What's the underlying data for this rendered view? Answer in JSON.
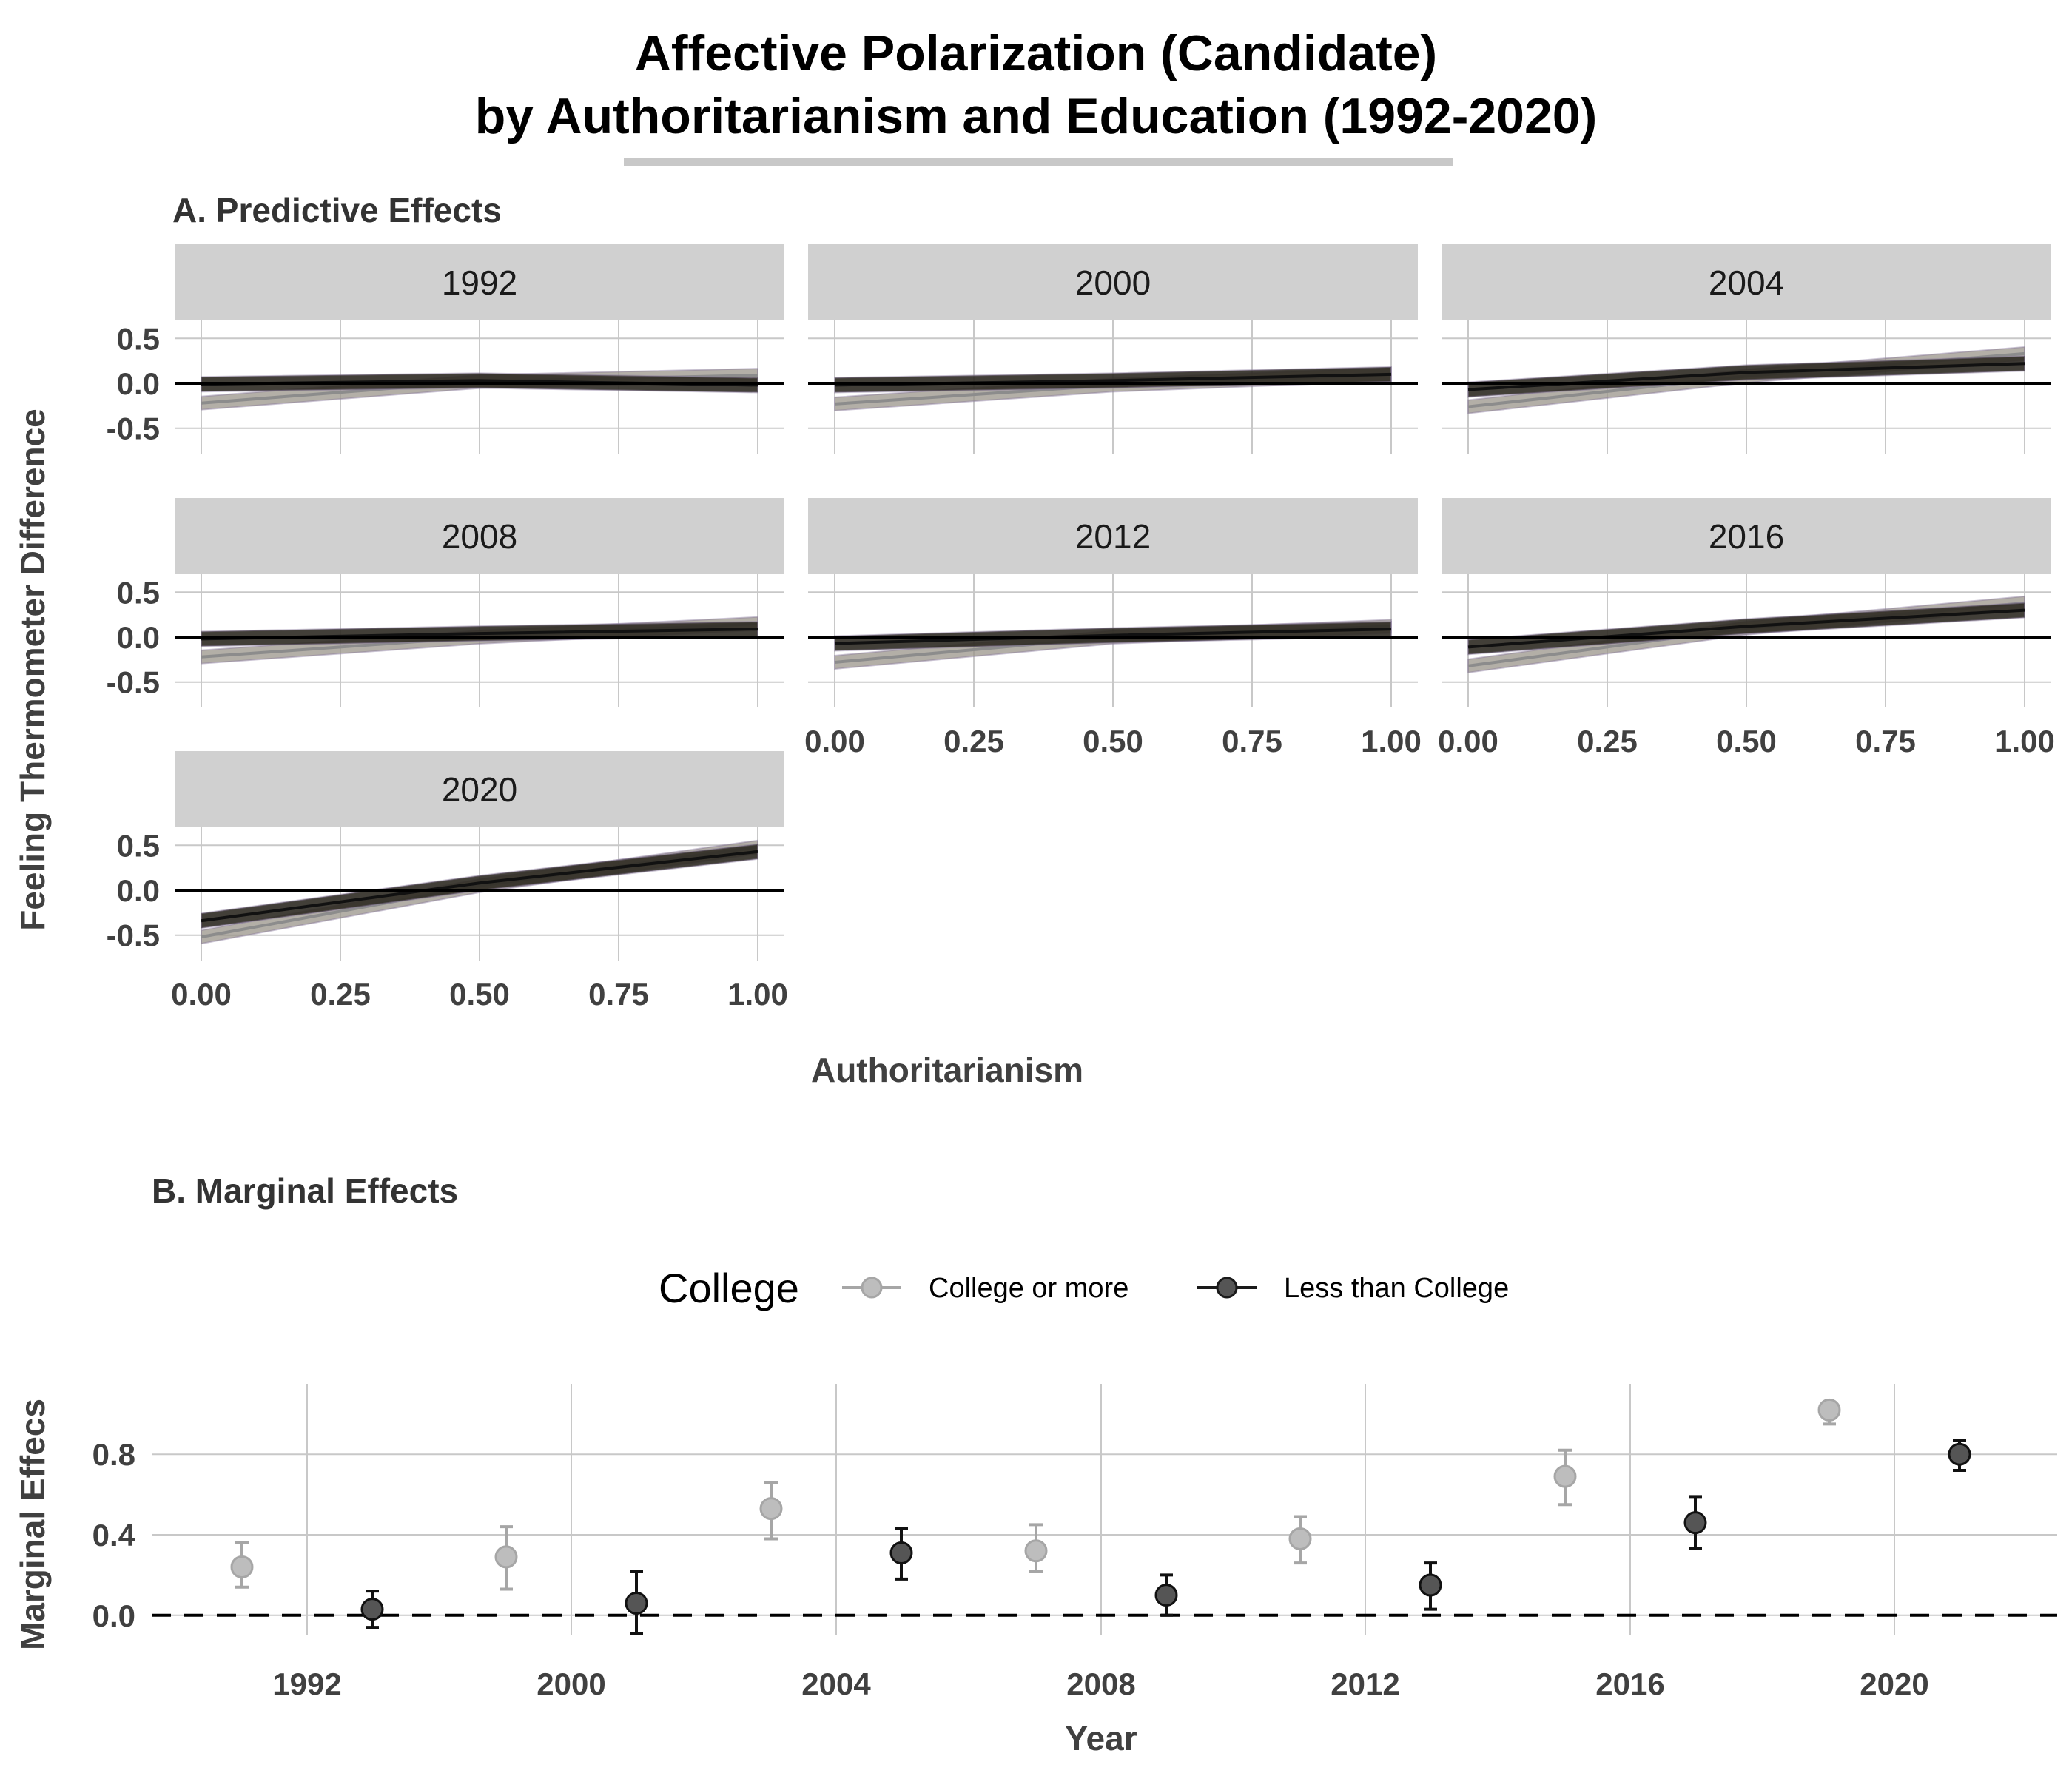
{
  "title_line1": "Affective Polarization (Candidate)",
  "title_line2": "by Authoritarianism and Education (1992-2020)",
  "colors": {
    "college": "#a6a6a6",
    "less_than_college": "#1a1a1a",
    "ribbon_tint": "#8a7a9e",
    "strip_bg": "#d0d0d0",
    "grid": "#c8c8c8"
  },
  "chart_data": [
    {
      "type": "line",
      "subtitle": "A. Predictive Effects",
      "xlabel": "Authoritarianism",
      "ylabel": "Feeling Thermometer Difference",
      "xlim": [
        0,
        1
      ],
      "ylim": [
        -0.7,
        0.7
      ],
      "x_ticks": [
        "0.00",
        "0.25",
        "0.50",
        "0.75",
        "1.00"
      ],
      "y_ticks": [
        "0.5",
        "0.0",
        "-0.5"
      ],
      "reference_line": 0,
      "grid": true,
      "facets": [
        {
          "label": "1992",
          "series": [
            {
              "group": "College or more",
              "x": [
                0,
                0.5,
                1
              ],
              "y": [
                -0.22,
                0.02,
                0.09
              ]
            },
            {
              "group": "Less than College",
              "x": [
                0,
                0.5,
                1
              ],
              "y": [
                -0.01,
                0.03,
                -0.02
              ]
            }
          ]
        },
        {
          "label": "2000",
          "series": [
            {
              "group": "College or more",
              "x": [
                0,
                0.5,
                1
              ],
              "y": [
                -0.23,
                -0.02,
                0.1
              ]
            },
            {
              "group": "Less than College",
              "x": [
                0,
                0.5,
                1
              ],
              "y": [
                -0.02,
                0.03,
                0.1
              ]
            }
          ]
        },
        {
          "label": "2004",
          "series": [
            {
              "group": "College or more",
              "x": [
                0,
                0.5,
                1
              ],
              "y": [
                -0.26,
                0.08,
                0.33
              ]
            },
            {
              "group": "Less than College",
              "x": [
                0,
                0.5,
                1
              ],
              "y": [
                -0.07,
                0.12,
                0.22
              ]
            }
          ]
        },
        {
          "label": "2008",
          "series": [
            {
              "group": "College or more",
              "x": [
                0,
                0.5,
                1
              ],
              "y": [
                -0.22,
                0.0,
                0.15
              ]
            },
            {
              "group": "Less than College",
              "x": [
                0,
                0.5,
                1
              ],
              "y": [
                -0.02,
                0.04,
                0.09
              ]
            }
          ]
        },
        {
          "label": "2012",
          "series": [
            {
              "group": "College or more",
              "x": [
                0,
                0.5,
                1
              ],
              "y": [
                -0.28,
                0.0,
                0.12
              ]
            },
            {
              "group": "Less than College",
              "x": [
                0,
                0.5,
                1
              ],
              "y": [
                -0.07,
                0.02,
                0.09
              ]
            }
          ]
        },
        {
          "label": "2016",
          "series": [
            {
              "group": "College or more",
              "x": [
                0,
                0.5,
                1
              ],
              "y": [
                -0.32,
                0.1,
                0.38
              ]
            },
            {
              "group": "Less than College",
              "x": [
                0,
                0.5,
                1
              ],
              "y": [
                -0.11,
                0.12,
                0.3
              ]
            }
          ]
        },
        {
          "label": "2020",
          "series": [
            {
              "group": "College or more",
              "x": [
                0,
                0.5,
                1
              ],
              "y": [
                -0.52,
                0.05,
                0.48
              ]
            },
            {
              "group": "Less than College",
              "x": [
                0,
                0.5,
                1
              ],
              "y": [
                -0.34,
                0.08,
                0.43
              ]
            }
          ]
        }
      ]
    },
    {
      "type": "scatter",
      "subtitle": "B. Marginal Effects",
      "xlabel": "Year",
      "ylabel": "Marginal Effecs",
      "legend_title": "College",
      "legend_position": "top",
      "categories": [
        "1992",
        "2000",
        "2004",
        "2008",
        "2012",
        "2016",
        "2020"
      ],
      "ylim": [
        -0.1,
        1.15
      ],
      "y_ticks": [
        "0.8",
        "0.4",
        "0.0"
      ],
      "reference_line": 0,
      "grid": true,
      "series": [
        {
          "name": "College or more",
          "values": [
            0.24,
            0.29,
            0.53,
            0.32,
            0.38,
            0.69,
            1.02
          ],
          "lower": [
            0.14,
            0.13,
            0.38,
            0.22,
            0.26,
            0.55,
            0.95
          ],
          "upper": [
            0.36,
            0.44,
            0.66,
            0.45,
            0.49,
            0.82,
            1.04
          ]
        },
        {
          "name": "Less than College",
          "values": [
            0.03,
            0.06,
            0.31,
            0.1,
            0.15,
            0.46,
            0.8
          ],
          "lower": [
            -0.06,
            -0.09,
            0.18,
            0.0,
            0.03,
            0.33,
            0.72
          ],
          "upper": [
            0.12,
            0.22,
            0.43,
            0.2,
            0.26,
            0.59,
            0.87
          ]
        }
      ]
    }
  ]
}
